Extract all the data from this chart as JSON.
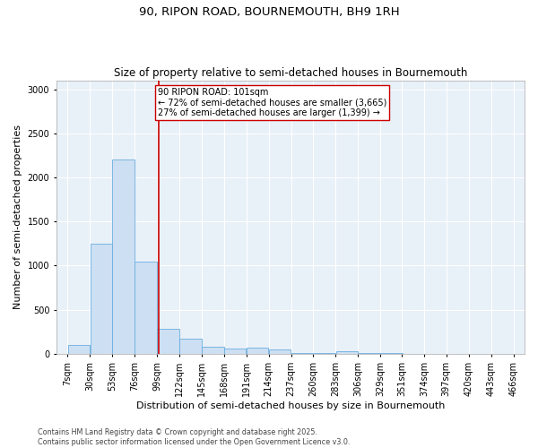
{
  "title": "90, RIPON ROAD, BOURNEMOUTH, BH9 1RH",
  "subtitle": "Size of property relative to semi-detached houses in Bournemouth",
  "xlabel": "Distribution of semi-detached houses by size in Bournemouth",
  "ylabel": "Number of semi-detached properties",
  "footnote": "Contains HM Land Registry data © Crown copyright and database right 2025.\nContains public sector information licensed under the Open Government Licence v3.0.",
  "property_label": "90 RIPON ROAD: 101sqm",
  "pct_smaller": "72% of semi-detached houses are smaller (3,665)",
  "pct_larger": "27% of semi-detached houses are larger (1,399)",
  "property_size": 101,
  "bin_edges": [
    7,
    30,
    53,
    76,
    99,
    122,
    145,
    168,
    191,
    214,
    237,
    260,
    283,
    306,
    329,
    351,
    374,
    397,
    420,
    443,
    466
  ],
  "bin_labels": [
    "7sqm",
    "30sqm",
    "53sqm",
    "76sqm",
    "99sqm",
    "122sqm",
    "145sqm",
    "168sqm",
    "191sqm",
    "214sqm",
    "237sqm",
    "260sqm",
    "283sqm",
    "306sqm",
    "329sqm",
    "351sqm",
    "374sqm",
    "397sqm",
    "420sqm",
    "443sqm",
    "466sqm"
  ],
  "bar_heights": [
    100,
    1250,
    2200,
    1050,
    280,
    170,
    80,
    60,
    70,
    50,
    5,
    5,
    30,
    5,
    5,
    0,
    0,
    0,
    0,
    0
  ],
  "bar_color": "#cddff2",
  "bar_edge_color": "#6aaee0",
  "vline_color": "#cc0000",
  "vline_x": 101,
  "annotation_box_color": "#cc0000",
  "ylim": [
    0,
    3100
  ],
  "yticks": [
    0,
    500,
    1000,
    1500,
    2000,
    2500,
    3000
  ],
  "bg_color": "#e8f0f8",
  "grid_color": "#ffffff",
  "title_fontsize": 9.5,
  "subtitle_fontsize": 8.5,
  "axis_label_fontsize": 8,
  "tick_fontsize": 7,
  "annotation_fontsize": 7,
  "footnote_fontsize": 5.8
}
